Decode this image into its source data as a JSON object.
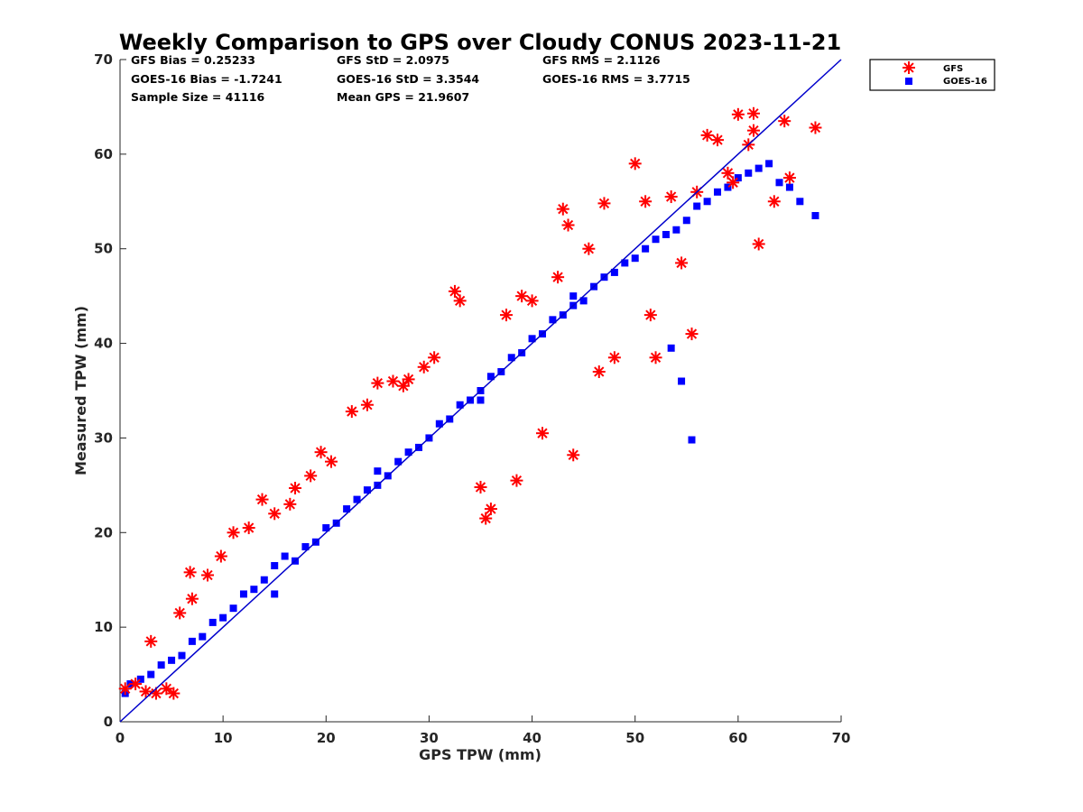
{
  "chart_data": {
    "type": "scatter",
    "title": "Weekly Comparison to GPS over Cloudy CONUS 2023-11-21",
    "xlabel": "GPS TPW (mm)",
    "ylabel": "Measured TPW (mm)",
    "xlim": [
      0,
      70
    ],
    "ylim": [
      0,
      70
    ],
    "xticks": [
      "0",
      "10",
      "20",
      "30",
      "40",
      "50",
      "60",
      "70"
    ],
    "yticks": [
      "0",
      "10",
      "20",
      "30",
      "40",
      "50",
      "60",
      "70"
    ],
    "grid": false,
    "legend_position": "outside top-right",
    "reference_line": {
      "x": [
        0,
        70
      ],
      "y": [
        0,
        70
      ],
      "color": "#0000cc"
    },
    "stats": [
      [
        "GFS Bias = 0.25233",
        "GFS StD = 2.0975",
        "GFS RMS = 2.1126"
      ],
      [
        "GOES-16 Bias = -1.7241",
        "GOES-16 StD = 3.3544",
        "GOES-16 RMS = 3.7715"
      ],
      [
        "Sample Size = 41116",
        "Mean GPS = 21.9607",
        ""
      ]
    ],
    "series": [
      {
        "name": "GFS",
        "marker": "asterisk",
        "color": "#ff0000",
        "x": [
          0.5,
          1.5,
          2.5,
          3.0,
          3.5,
          4.5,
          5.2,
          5.8,
          6.8,
          7.0,
          8.5,
          9.8,
          11.0,
          12.5,
          13.8,
          15.0,
          16.5,
          17.0,
          18.5,
          19.5,
          20.5,
          22.5,
          24.0,
          25.0,
          26.5,
          27.5,
          28.0,
          29.5,
          30.5,
          32.5,
          33.0,
          35.0,
          35.5,
          36.0,
          37.5,
          38.5,
          39.0,
          40.0,
          41.0,
          42.5,
          43.0,
          43.5,
          44.0,
          45.5,
          46.5,
          47.0,
          48.0,
          50.0,
          51.0,
          51.5,
          52.0,
          53.5,
          54.5,
          55.5,
          56.0,
          57.0,
          58.0,
          59.5,
          60.0,
          61.0,
          61.5,
          62.0,
          63.5,
          64.5,
          65.0,
          67.5,
          61.5,
          59.0
        ],
        "y": [
          3.5,
          4.0,
          3.2,
          8.5,
          3.0,
          3.5,
          3.0,
          11.5,
          15.8,
          13.0,
          15.5,
          17.5,
          20.0,
          20.5,
          23.5,
          22.0,
          23.0,
          24.7,
          26.0,
          28.5,
          27.5,
          32.8,
          33.5,
          35.8,
          36.0,
          35.5,
          36.2,
          37.5,
          38.5,
          45.5,
          44.5,
          24.8,
          21.5,
          22.5,
          43.0,
          25.5,
          45.0,
          44.5,
          30.5,
          47.0,
          54.2,
          52.5,
          28.2,
          50.0,
          37.0,
          54.8,
          38.5,
          59.0,
          55.0,
          43.0,
          38.5,
          55.5,
          48.5,
          41.0,
          56.0,
          62.0,
          61.5,
          57.0,
          64.2,
          61.0,
          64.3,
          50.5,
          55.0,
          63.5,
          57.5,
          62.8,
          62.5,
          58.0
        ]
      },
      {
        "name": "GOES-16",
        "marker": "square",
        "color": "#0000ff",
        "x": [
          0.5,
          1.0,
          2.0,
          3.0,
          4.0,
          5.0,
          6.0,
          7.0,
          8.0,
          9.0,
          10.0,
          11.0,
          12.0,
          13.0,
          14.0,
          15.0,
          16.0,
          17.0,
          18.0,
          19.0,
          20.0,
          21.0,
          22.0,
          23.0,
          24.0,
          25.0,
          26.0,
          27.0,
          28.0,
          29.0,
          30.0,
          31.0,
          32.0,
          33.0,
          34.0,
          35.0,
          36.0,
          37.0,
          38.0,
          39.0,
          40.0,
          41.0,
          42.0,
          43.0,
          44.0,
          45.0,
          46.0,
          47.0,
          48.0,
          49.0,
          50.0,
          51.0,
          52.0,
          53.0,
          54.0,
          55.0,
          56.0,
          57.0,
          58.0,
          59.0,
          60.0,
          61.0,
          62.0,
          63.0,
          64.0,
          65.0,
          66.0,
          67.5,
          55.5,
          54.5,
          53.5,
          44.0,
          35.0,
          25.0,
          15.0
        ],
        "y": [
          3.0,
          4.0,
          4.5,
          5.0,
          6.0,
          6.5,
          7.0,
          8.5,
          9.0,
          10.5,
          11.0,
          12.0,
          13.5,
          14.0,
          15.0,
          16.5,
          17.5,
          17.0,
          18.5,
          19.0,
          20.5,
          21.0,
          22.5,
          23.5,
          24.5,
          25.0,
          26.0,
          27.5,
          28.5,
          29.0,
          30.0,
          31.5,
          32.0,
          33.5,
          34.0,
          35.0,
          36.5,
          37.0,
          38.5,
          39.0,
          40.5,
          41.0,
          42.5,
          43.0,
          44.0,
          44.5,
          46.0,
          47.0,
          47.5,
          48.5,
          49.0,
          50.0,
          51.0,
          51.5,
          52.0,
          53.0,
          54.5,
          55.0,
          56.0,
          56.5,
          57.5,
          58.0,
          58.5,
          59.0,
          57.0,
          56.5,
          55.0,
          53.5,
          29.8,
          36.0,
          39.5,
          45.0,
          34.0,
          26.5,
          13.5
        ]
      }
    ]
  }
}
